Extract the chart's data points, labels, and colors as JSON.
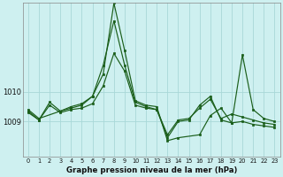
{
  "background_color": "#cef0f0",
  "plot_bg_color": "#cef0f0",
  "line_color": "#1a5e1a",
  "grid_color": "#a8d8d8",
  "title": "Graphe pression niveau de la mer (hPa)",
  "ylabel_ticks": [
    1009,
    1010
  ],
  "xlim": [
    -0.5,
    23.5
  ],
  "ylim": [
    1007.8,
    1013.0
  ],
  "series1_x": [
    0,
    1,
    2,
    3,
    4,
    5,
    6,
    7,
    8,
    9,
    10,
    11,
    12,
    13,
    14,
    15,
    16,
    17,
    18,
    19,
    20,
    21,
    22,
    23
  ],
  "series1_y": [
    1009.3,
    1009.05,
    1009.55,
    1009.3,
    1009.4,
    1009.45,
    1009.6,
    1010.2,
    1011.3,
    1010.7,
    1009.55,
    1009.45,
    1009.4,
    1008.55,
    1009.05,
    1009.1,
    1009.45,
    1009.75,
    1009.1,
    1009.25,
    1009.15,
    1009.05,
    1008.95,
    1008.9
  ],
  "series2_x": [
    0,
    1,
    2,
    3,
    4,
    5,
    6,
    7,
    8,
    9,
    10,
    11,
    12,
    13,
    14,
    15,
    16,
    17,
    18,
    19,
    20,
    21,
    22,
    23
  ],
  "series2_y": [
    1009.35,
    1009.05,
    1009.65,
    1009.35,
    1009.45,
    1009.55,
    1009.85,
    1010.9,
    1012.4,
    1010.9,
    1009.65,
    1009.5,
    1009.4,
    1008.45,
    1009.0,
    1009.05,
    1009.55,
    1009.85,
    1009.05,
    1008.95,
    1009.0,
    1008.9,
    1008.85,
    1008.8
  ],
  "series3_x": [
    0,
    1,
    3,
    4,
    5,
    6,
    7,
    8,
    9,
    10,
    11,
    12,
    13,
    14,
    16,
    17,
    18,
    19,
    20,
    21,
    22,
    23
  ],
  "series3_y": [
    1009.4,
    1009.1,
    1009.35,
    1009.5,
    1009.6,
    1009.85,
    1010.6,
    1013.0,
    1011.4,
    1009.7,
    1009.55,
    1009.5,
    1008.35,
    1008.45,
    1008.55,
    1009.2,
    1009.45,
    1008.95,
    1011.25,
    1009.4,
    1009.1,
    1009.0
  ],
  "xtick_labels": [
    "0",
    "1",
    "2",
    "3",
    "4",
    "5",
    "6",
    "7",
    "8",
    "9",
    "10",
    "11",
    "12",
    "13",
    "14",
    "15",
    "16",
    "17",
    "18",
    "19",
    "20",
    "21",
    "22",
    "23"
  ]
}
